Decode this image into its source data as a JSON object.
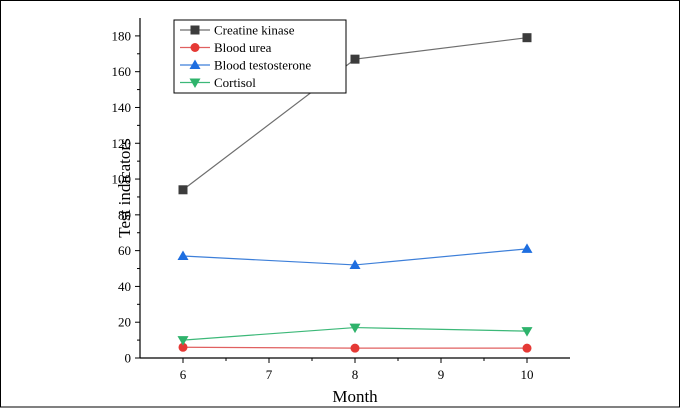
{
  "chart_data": {
    "type": "line",
    "title": "",
    "xlabel": "Month",
    "ylabel": "Test indicators",
    "x": [
      6,
      8,
      10
    ],
    "xlim": [
      5.5,
      10.5
    ],
    "ylim": [
      0,
      190
    ],
    "xticks": [
      6,
      7,
      8,
      9,
      10
    ],
    "yticks": [
      0,
      20,
      40,
      60,
      80,
      100,
      120,
      140,
      160,
      180
    ],
    "grid": false,
    "legend_position": "top-left",
    "series": [
      {
        "name": "Creatine kinase",
        "values": [
          94,
          167,
          179
        ],
        "color": "#6e6e6e",
        "marker_color": "#3c3c3c",
        "marker": "square"
      },
      {
        "name": "Blood urea",
        "values": [
          6,
          5.5,
          5.5
        ],
        "color": "#e06060",
        "marker_color": "#e53935",
        "marker": "circle"
      },
      {
        "name": "Blood testosterone",
        "values": [
          57,
          52,
          61
        ],
        "color": "#3d7fd9",
        "marker_color": "#1e6ee0",
        "marker": "triangle-up"
      },
      {
        "name": "Cortisol",
        "values": [
          10,
          17,
          15
        ],
        "color": "#3cb878",
        "marker_color": "#2eb36b",
        "marker": "triangle-down"
      }
    ]
  }
}
